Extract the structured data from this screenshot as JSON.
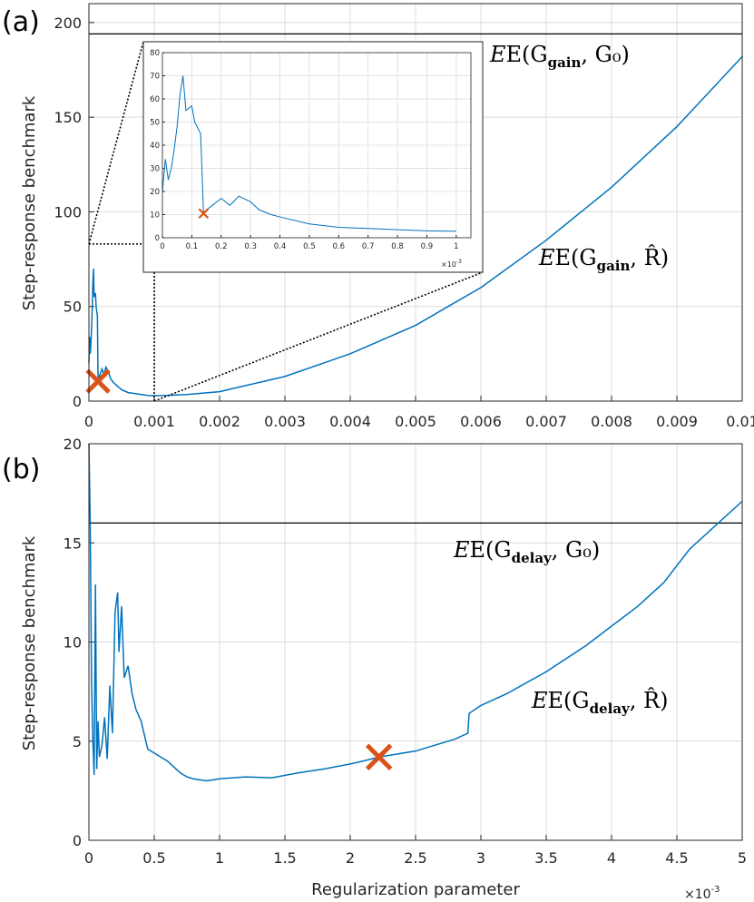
{
  "chart_data": [
    {
      "panel_label": "(a)",
      "type": "line",
      "ylabel": "Step-response benchmark",
      "xlim": [
        0,
        0.01
      ],
      "ylim": [
        0,
        210
      ],
      "xticks": [
        0,
        0.001,
        0.002,
        0.003,
        0.004,
        0.005,
        0.006,
        0.007,
        0.008,
        0.009,
        0.01
      ],
      "xtick_labels": [
        "0",
        "0.001",
        "0.002",
        "0.003",
        "0.004",
        "0.005",
        "0.006",
        "0.007",
        "0.008",
        "0.009",
        "0.01"
      ],
      "yticks": [
        0,
        50,
        100,
        150,
        200
      ],
      "ytick_labels": [
        "0",
        "50",
        "100",
        "150",
        "200"
      ],
      "grid": true,
      "color": "#0072BD",
      "baseline": {
        "value": 194,
        "color": "#000000",
        "label_main": "E(G",
        "label_sub": "gain",
        "label_tail": ", G₀)"
      },
      "curve_label": {
        "main": "E(G",
        "sub": "gain",
        "tail": ", R̂)"
      },
      "marker": {
        "x": 0.00014,
        "y": 10.5,
        "symbol": "x",
        "color": "#D95319"
      },
      "series": [
        {
          "x": [
            0,
            1e-05,
            2e-05,
            3e-05,
            4e-05,
            5e-05,
            6e-05,
            7e-05,
            8e-05,
            0.0001,
            0.00011,
            0.00013,
            0.00014,
            0.00015,
            0.00017,
            0.0002,
            0.00023,
            0.00026,
            0.0003,
            0.00033,
            0.00037,
            0.0004,
            0.0005,
            0.0006,
            0.0007,
            0.0008,
            0.0009,
            0.001,
            0.0012,
            0.0015,
            0.002,
            0.003,
            0.004,
            0.005,
            0.006,
            0.007,
            0.008,
            0.009,
            0.01
          ],
          "y": [
            20,
            34,
            25,
            30,
            38,
            48,
            62,
            70,
            55,
            57,
            50,
            45,
            10.5,
            12,
            14,
            17,
            14,
            18,
            15.5,
            12,
            10,
            9,
            6,
            4.5,
            4,
            3.5,
            3,
            2.8,
            3,
            3.5,
            5,
            13,
            25,
            40,
            60,
            85,
            113,
            145,
            182
          ]
        }
      ],
      "inset": {
        "xlim": [
          0,
          0.00105
        ],
        "ylim": [
          0,
          80
        ],
        "xticks": [
          0,
          0.0001,
          0.0002,
          0.0003,
          0.0004,
          0.0005,
          0.0006,
          0.0007,
          0.0008,
          0.0009,
          0.001
        ],
        "xtick_labels": [
          "0",
          "0.1",
          "0.2",
          "0.3",
          "0.4",
          "0.5",
          "0.6",
          "0.7",
          "0.8",
          "0.9",
          "1"
        ],
        "yticks": [
          0,
          10,
          20,
          30,
          40,
          50,
          60,
          70,
          80
        ],
        "ytick_labels": [
          "0",
          "10",
          "20",
          "30",
          "40",
          "50",
          "60",
          "70",
          "80"
        ],
        "x_multiplier": "×10",
        "x_multiplier_exp": "-3",
        "zoom_region": {
          "x": [
            0,
            0.001
          ],
          "y": [
            0,
            83
          ]
        }
      }
    },
    {
      "panel_label": "(b)",
      "type": "line",
      "ylabel": "Step-response benchmark",
      "xlabel": "Regularization parameter",
      "xlim": [
        0,
        0.005
      ],
      "ylim": [
        0,
        20
      ],
      "xticks": [
        0,
        0.0005,
        0.001,
        0.0015,
        0.002,
        0.0025,
        0.003,
        0.0035,
        0.004,
        0.0045,
        0.005
      ],
      "xtick_labels": [
        "0",
        "0.5",
        "1",
        "1.5",
        "2",
        "2.5",
        "3",
        "3.5",
        "4",
        "4.5",
        "5"
      ],
      "yticks": [
        0,
        5,
        10,
        15,
        20
      ],
      "ytick_labels": [
        "0",
        "5",
        "10",
        "15",
        "20"
      ],
      "x_multiplier": "×10",
      "x_multiplier_exp": "-3",
      "grid": true,
      "color": "#0072BD",
      "baseline": {
        "value": 16,
        "color": "#000000",
        "label_main": "E(G",
        "label_sub": "delay",
        "label_tail": ", G₀)"
      },
      "curve_label": {
        "main": "E(G",
        "sub": "delay",
        "tail": ", R̂)"
      },
      "marker": {
        "x": 0.00222,
        "y": 4.2,
        "symbol": "x",
        "color": "#D95319"
      },
      "series": [
        {
          "x": [
            0,
            1e-05,
            2e-05,
            3e-05,
            4e-05,
            5e-05,
            6e-05,
            7e-05,
            8e-05,
            0.0001,
            0.00012,
            0.00014,
            0.00016,
            0.00018,
            0.0002,
            0.00022,
            0.00023,
            0.00025,
            0.00027,
            0.0003,
            0.00033,
            0.00036,
            0.0004,
            0.00045,
            0.0005,
            0.0006,
            0.0007,
            0.00075,
            0.0008,
            0.0009,
            0.001,
            0.0012,
            0.0014,
            0.0016,
            0.0018,
            0.002,
            0.0021,
            0.00222,
            0.0025,
            0.0028,
            0.0029,
            0.00291,
            0.003,
            0.0032,
            0.0035,
            0.0038,
            0.004,
            0.0042,
            0.0044,
            0.0046,
            0.0048,
            0.005
          ],
          "y": [
            20,
            16,
            8,
            5,
            3.3,
            12.9,
            3.6,
            6,
            4.2,
            4.8,
            6.2,
            4.1,
            7.8,
            5.4,
            11.5,
            12.5,
            9.5,
            11.8,
            8.2,
            8.8,
            7.4,
            6.6,
            6.0,
            4.6,
            4.4,
            4.0,
            3.4,
            3.2,
            3.1,
            3.0,
            3.1,
            3.2,
            3.15,
            3.4,
            3.6,
            3.85,
            4.0,
            4.2,
            4.5,
            5.1,
            5.4,
            6.4,
            6.8,
            7.4,
            8.5,
            9.8,
            10.8,
            11.8,
            13.0,
            14.7,
            15.9,
            17.1
          ]
        }
      ]
    }
  ]
}
